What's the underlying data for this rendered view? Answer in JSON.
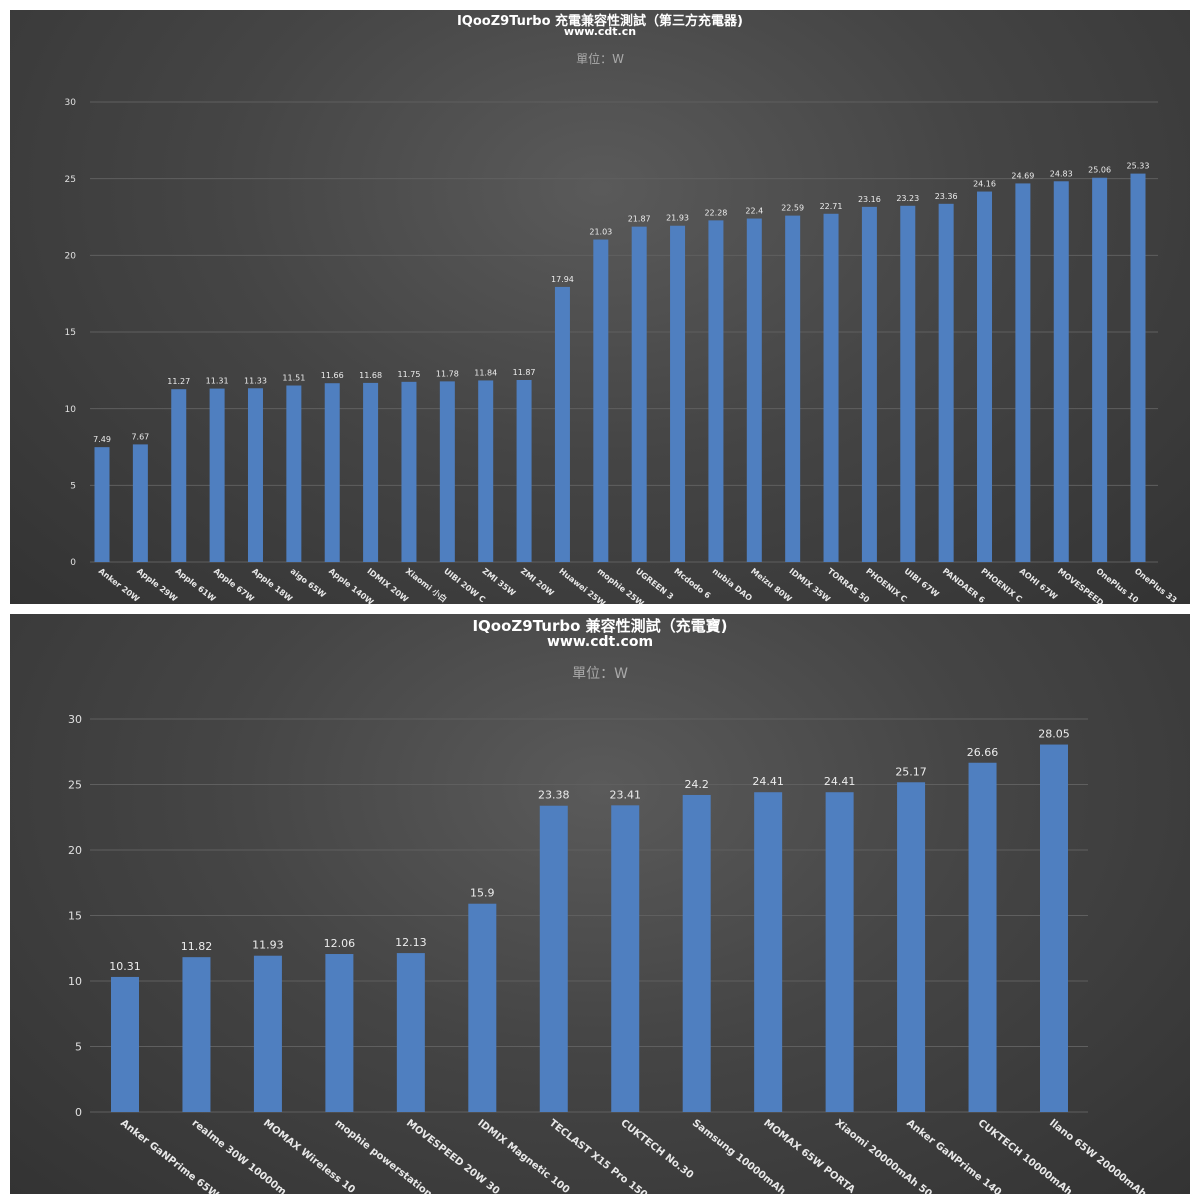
{
  "charts": [
    {
      "title": "IQooZ9Turbo 充電兼容性測試（第三方充電器)",
      "subtitle": "www.cdt.cn",
      "unit_label": "單位：W"
    },
    {
      "title": "IQooZ9Turbo 兼容性測試（充電寶)",
      "subtitle": "www.cdt.com",
      "unit_label": "單位：W"
    }
  ],
  "colors": {
    "bar": "#4f7fc0",
    "grid": "#5f5f5f"
  },
  "chart_data": [
    {
      "type": "bar",
      "title": "IQooZ9Turbo 充電兼容性測試（第三方充電器)",
      "xlabel": "",
      "ylabel": "",
      "ylim": [
        0,
        30
      ],
      "yticks": [
        0,
        5,
        10,
        15,
        20,
        25,
        30
      ],
      "grid": true,
      "categories": [
        "Anker 20W",
        "Apple 29W",
        "Apple 61W",
        "Apple 67W",
        "Apple 18W",
        "aigo 65W",
        "Apple 140W",
        "IDMIX 20W",
        "Xiaomi 小白",
        "UIBI 20W C",
        "ZMI 35W",
        "ZMI 20W",
        "Huawei 25W",
        "mophie 25W",
        "UGREEN 3",
        "Mcdodo 6",
        "nubia DAO",
        "Meizu 80W",
        "IDMIX 35W",
        "TORRAS 50",
        "PHOENIX C",
        "UIBI 67W",
        "PANDAER 6",
        "PHOENIX C",
        "AOHI 67W",
        "MOVESPEED",
        "OnePlus 10",
        "OnePlus 33"
      ],
      "values": [
        7.49,
        7.67,
        11.27,
        11.31,
        11.33,
        11.51,
        11.66,
        11.68,
        11.75,
        11.78,
        11.84,
        11.87,
        17.94,
        21.03,
        21.87,
        21.93,
        22.28,
        22.4,
        22.59,
        22.71,
        23.16,
        23.23,
        23.36,
        24.16,
        24.69,
        24.83,
        25.06,
        25.33
      ],
      "value_labels": [
        "7.49",
        "7.67",
        "11.27",
        "11.31",
        "11.33",
        "11.51",
        "11.66",
        "11.68",
        "11.75",
        "11.78",
        "11.84",
        "11.87",
        "17.94",
        "21.03",
        "21.87",
        "21.93",
        "22.28",
        "22.4",
        "22.59",
        "22.71",
        "23.16",
        "23.23",
        "23.36",
        "24.16",
        "24.69",
        "24.83",
        "25.06",
        "25.33"
      ]
    },
    {
      "type": "bar",
      "title": "IQooZ9Turbo 兼容性測試（充電寶)",
      "xlabel": "",
      "ylabel": "",
      "ylim": [
        0,
        30
      ],
      "yticks": [
        0,
        5,
        10,
        15,
        20,
        25,
        30
      ],
      "grid": true,
      "categories": [
        "Anker GaNPrime 65W",
        "realme 30W 10000m",
        "MOMAX Wireless 10",
        "mophie powerstation",
        "MOVESPEED 20W 30",
        "IDMIX Magnetic 100",
        "TECLAST X15 Pro 150",
        "CUKTECH No.30",
        "Samsung 10000mAh",
        "MOMAX 65W PORTA",
        "Xiaomi 20000mAh 50",
        "Anker GaNPrime 140",
        "CUKTECH 10000mAh",
        "llano 65W 20000mAh"
      ],
      "values": [
        10.31,
        11.82,
        11.93,
        12.06,
        12.13,
        15.9,
        23.38,
        23.41,
        24.2,
        24.41,
        24.41,
        25.17,
        26.66,
        28.05
      ],
      "value_labels": [
        "10.31",
        "11.82",
        "11.93",
        "12.06",
        "12.13",
        "15.9",
        "23.38",
        "23.41",
        "24.2",
        "24.41",
        "24.41",
        "25.17",
        "26.66",
        "28.05"
      ]
    }
  ]
}
